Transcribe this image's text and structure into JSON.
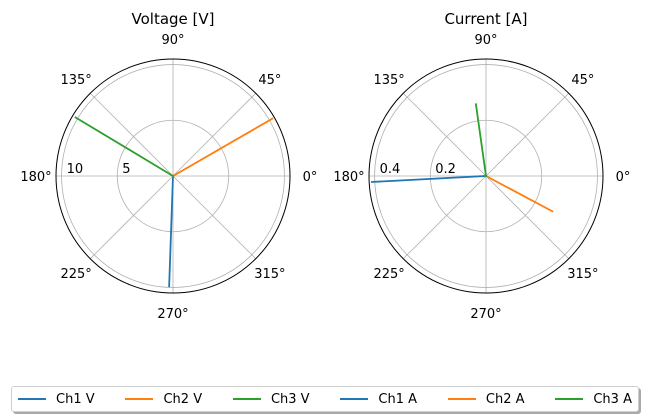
{
  "chart_data": [
    {
      "type": "polar",
      "title": "Voltage [V]",
      "angle_ticks": [
        "0°",
        "45°",
        "90°",
        "135°",
        "180°",
        "225°",
        "270°",
        "315°"
      ],
      "angle_tick_values": [
        0,
        45,
        90,
        135,
        180,
        225,
        270,
        315
      ],
      "radial_ticks": [
        "5",
        "10"
      ],
      "radial_tick_values": [
        5,
        10
      ],
      "rlim": [
        0,
        10.5
      ],
      "grid": true,
      "series": [
        {
          "name": "Ch1 V",
          "color": "#1f77b4",
          "angle_deg": 268,
          "magnitude": 9.9
        },
        {
          "name": "Ch2 V",
          "color": "#ff7f0e",
          "angle_deg": 30,
          "magnitude": 10.3
        },
        {
          "name": "Ch3 V",
          "color": "#2ca02c",
          "angle_deg": 149,
          "magnitude": 10.2
        }
      ]
    },
    {
      "type": "polar",
      "title": "Current [A]",
      "angle_ticks": [
        "0°",
        "45°",
        "90°",
        "135°",
        "180°",
        "225°",
        "270°",
        "315°"
      ],
      "angle_tick_values": [
        0,
        45,
        90,
        135,
        180,
        225,
        270,
        315
      ],
      "radial_ticks": [
        "0.2",
        "0.4"
      ],
      "radial_tick_values": [
        0.2,
        0.4
      ],
      "rlim": [
        0,
        0.42
      ],
      "grid": true,
      "series": [
        {
          "name": "Ch1 A",
          "color": "#1f77b4",
          "angle_deg": 183,
          "magnitude": 0.41
        },
        {
          "name": "Ch2 A",
          "color": "#ff7f0e",
          "angle_deg": -28,
          "magnitude": 0.27
        },
        {
          "name": "Ch3 A",
          "color": "#2ca02c",
          "angle_deg": 98,
          "magnitude": 0.26
        }
      ]
    }
  ],
  "legend": {
    "placement": "bottom",
    "entries": [
      {
        "label": "Ch1 V",
        "color": "#1f77b4"
      },
      {
        "label": "Ch2 V",
        "color": "#ff7f0e"
      },
      {
        "label": "Ch3 V",
        "color": "#2ca02c"
      },
      {
        "label": "Ch1 A",
        "color": "#1f77b4"
      },
      {
        "label": "Ch2 A",
        "color": "#ff7f0e"
      },
      {
        "label": "Ch3 A",
        "color": "#2ca02c"
      }
    ]
  }
}
